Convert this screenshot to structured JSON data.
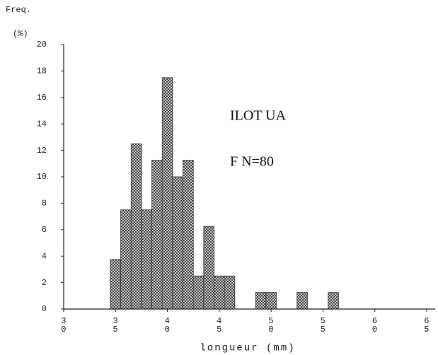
{
  "chart_data": {
    "type": "histogram",
    "ylabel_line1": "Freq.",
    "ylabel_line2": "(%)",
    "xlabel": "longueur (mm)",
    "annotations": [
      "ILOT UA",
      "F N=80"
    ],
    "bins": [
      34.5,
      35.5,
      36.5,
      37.5,
      38.5,
      39.5,
      40.5,
      41.5,
      42.5,
      43.5,
      44.5,
      45.5,
      46.5,
      47.5,
      48.5,
      49.5,
      50.5,
      51.5,
      52.5,
      53.5,
      54.5,
      55.5,
      56.5
    ],
    "values": [
      3.75,
      7.5,
      12.5,
      7.5,
      11.25,
      17.5,
      10,
      11.25,
      2.5,
      6.25,
      2.5,
      2.5,
      0,
      0,
      1.25,
      1.25,
      0,
      0,
      1.25,
      0,
      0,
      1.25
    ],
    "xlim": [
      30,
      65
    ],
    "xticks": [
      30,
      35,
      40,
      45,
      50,
      55,
      60,
      65
    ],
    "ylim": [
      0,
      20
    ],
    "yticks": [
      0,
      2,
      4,
      6,
      8,
      10,
      12,
      14,
      16,
      18,
      20
    ],
    "color": "#333333"
  }
}
